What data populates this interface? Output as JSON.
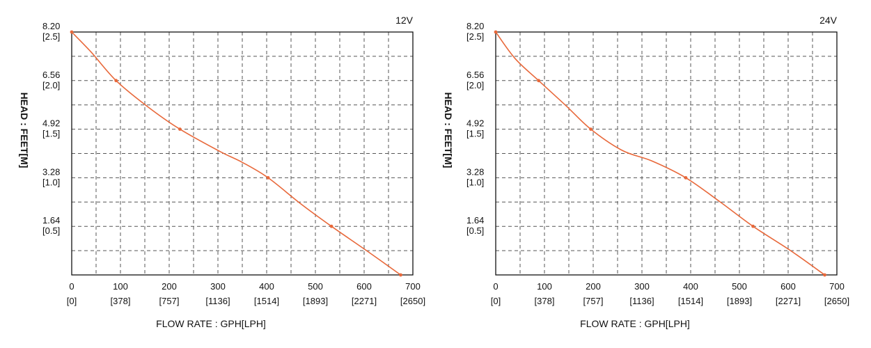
{
  "chart_data": [
    {
      "type": "line",
      "title": "12V",
      "xlabel": "FLOW RATE : GPH[LPH]",
      "ylabel": "HEAD : FEET[M]",
      "xlim": [
        0,
        700
      ],
      "ylim": [
        0,
        8.2
      ],
      "grid": true,
      "x_ticks": [
        {
          "value": 0,
          "label": "0",
          "sublabel": "[0]"
        },
        {
          "value": 100,
          "label": "100",
          "sublabel": "[378]"
        },
        {
          "value": 200,
          "label": "200",
          "sublabel": "[757]"
        },
        {
          "value": 300,
          "label": "300",
          "sublabel": "[1136]"
        },
        {
          "value": 400,
          "label": "400",
          "sublabel": "[1514]"
        },
        {
          "value": 500,
          "label": "500",
          "sublabel": "[1893]"
        },
        {
          "value": 600,
          "label": "600",
          "sublabel": "[2271]"
        },
        {
          "value": 700,
          "label": "700",
          "sublabel": "[2650]"
        }
      ],
      "y_ticks": [
        {
          "value": 1.64,
          "label": "1.64",
          "sublabel": "[0.5]"
        },
        {
          "value": 3.28,
          "label": "3.28",
          "sublabel": "[1.0]"
        },
        {
          "value": 4.92,
          "label": "4.92",
          "sublabel": "[1.5]"
        },
        {
          "value": 6.56,
          "label": "6.56",
          "sublabel": "[2.0]"
        },
        {
          "value": 8.2,
          "label": "8.20",
          "sublabel": "[2.5]"
        }
      ],
      "series": [
        {
          "name": "12V",
          "color": "#e8683a",
          "curve": [
            {
              "x": 0,
              "y": 8.2
            },
            {
              "x": 40,
              "y": 7.52
            },
            {
              "x": 91,
              "y": 6.56
            },
            {
              "x": 155,
              "y": 5.69
            },
            {
              "x": 222,
              "y": 4.92
            },
            {
              "x": 305,
              "y": 4.16
            },
            {
              "x": 350,
              "y": 3.8
            },
            {
              "x": 403,
              "y": 3.28
            },
            {
              "x": 470,
              "y": 2.4
            },
            {
              "x": 533,
              "y": 1.64
            },
            {
              "x": 605,
              "y": 0.82
            },
            {
              "x": 675,
              "y": 0
            }
          ],
          "markers": [
            {
              "x": 0,
              "y": 8.2
            },
            {
              "x": 91,
              "y": 6.56
            },
            {
              "x": 222,
              "y": 4.92
            },
            {
              "x": 403,
              "y": 3.28
            },
            {
              "x": 533,
              "y": 1.64
            },
            {
              "x": 675,
              "y": 0
            }
          ]
        }
      ]
    },
    {
      "type": "line",
      "title": "24V",
      "xlabel": "FLOW RATE : GPH[LPH]",
      "ylabel": "HEAD : FEET[M]",
      "xlim": [
        0,
        700
      ],
      "ylim": [
        0,
        8.2
      ],
      "grid": true,
      "x_ticks": [
        {
          "value": 0,
          "label": "0",
          "sublabel": "[0]"
        },
        {
          "value": 100,
          "label": "100",
          "sublabel": "[378]"
        },
        {
          "value": 200,
          "label": "200",
          "sublabel": "[757]"
        },
        {
          "value": 300,
          "label": "300",
          "sublabel": "[1136]"
        },
        {
          "value": 400,
          "label": "400",
          "sublabel": "[1514]"
        },
        {
          "value": 500,
          "label": "500",
          "sublabel": "[1893]"
        },
        {
          "value": 600,
          "label": "600",
          "sublabel": "[2271]"
        },
        {
          "value": 700,
          "label": "700",
          "sublabel": "[2650]"
        }
      ],
      "y_ticks": [
        {
          "value": 1.64,
          "label": "1.64",
          "sublabel": "[0.5]"
        },
        {
          "value": 3.28,
          "label": "3.28",
          "sublabel": "[1.0]"
        },
        {
          "value": 4.92,
          "label": "4.92",
          "sublabel": "[1.5]"
        },
        {
          "value": 6.56,
          "label": "6.56",
          "sublabel": "[2.0]"
        },
        {
          "value": 8.2,
          "label": "8.20",
          "sublabel": "[2.5]"
        }
      ],
      "series": [
        {
          "name": "24V",
          "color": "#e8683a",
          "curve": [
            {
              "x": 0,
              "y": 8.2
            },
            {
              "x": 40,
              "y": 7.3
            },
            {
              "x": 88,
              "y": 6.56
            },
            {
              "x": 145,
              "y": 5.7
            },
            {
              "x": 195,
              "y": 4.92
            },
            {
              "x": 260,
              "y": 4.2
            },
            {
              "x": 320,
              "y": 3.85
            },
            {
              "x": 390,
              "y": 3.28
            },
            {
              "x": 460,
              "y": 2.47
            },
            {
              "x": 528,
              "y": 1.64
            },
            {
              "x": 605,
              "y": 0.82
            },
            {
              "x": 675,
              "y": 0
            }
          ],
          "markers": [
            {
              "x": 0,
              "y": 8.2
            },
            {
              "x": 88,
              "y": 6.56
            },
            {
              "x": 195,
              "y": 4.92
            },
            {
              "x": 390,
              "y": 3.28
            },
            {
              "x": 528,
              "y": 1.64
            },
            {
              "x": 675,
              "y": 0
            }
          ]
        }
      ]
    }
  ]
}
